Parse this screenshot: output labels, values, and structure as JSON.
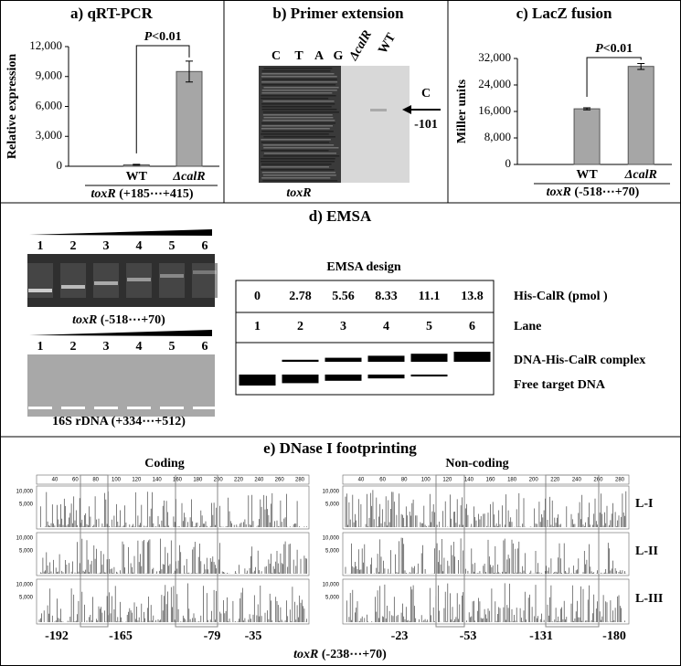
{
  "chart_data": [
    {
      "type": "bar",
      "title": "a) qRT-PCR",
      "y_label": "Relative expression",
      "categories": [
        "WT",
        "ΔcalR"
      ],
      "values": [
        150,
        9500
      ],
      "errors": [
        40,
        1050
      ],
      "color": "#a6a6a6",
      "ylim": [
        0,
        12000
      ],
      "yticks": [
        0,
        {
          "value": 3000,
          "label": "3,000"
        },
        {
          "value": 6000,
          "label": "6,000"
        },
        {
          "value": 9000,
          "label": "9,000"
        },
        {
          "value": 12000,
          "label": "12,000"
        }
      ],
      "annotation": {
        "p": "P",
        "text": "<0.01"
      },
      "x_label": {
        "gene": "toxR",
        "range": "(+185⋯+415)"
      }
    },
    {
      "type": "bar",
      "title": "c) LacZ fusion",
      "y_label": "Miller units",
      "categories": [
        "WT",
        "ΔcalR"
      ],
      "values": [
        16800,
        29600
      ],
      "errors": [
        300,
        900
      ],
      "color": "#a6a6a6",
      "ylim": [
        0,
        32000
      ],
      "yticks": [
        0,
        {
          "value": 8000,
          "label": "8,000"
        },
        {
          "value": 16000,
          "label": "16,000"
        },
        {
          "value": 24000,
          "label": "24,000"
        },
        {
          "value": 32000,
          "label": "32,000"
        }
      ],
      "annotation": {
        "p": "P",
        "text": "<0.01"
      },
      "x_label": {
        "gene": "toxR",
        "range": "(-518⋯+70)"
      }
    }
  ],
  "primer_extension": {
    "title": "b) Primer extension",
    "lanes": [
      "C",
      "T",
      "A",
      "G",
      "ΔcalR",
      "WT"
    ],
    "arrow_label": "C",
    "position": "-101",
    "gene": "toxR"
  },
  "emsa": {
    "title": "d) EMSA",
    "lanes": [
      "1",
      "2",
      "3",
      "4",
      "5",
      "6"
    ],
    "gel1": {
      "gene": "toxR",
      "range": "(-518⋯+70)"
    },
    "gel2": "16S rDNA (+334⋯+512)",
    "design_title": "EMSA design",
    "amounts": [
      "0",
      "2.78",
      "5.56",
      "8.33",
      "11.1",
      "13.8"
    ],
    "row_labels": [
      "His-CalR (pmol )",
      "Lane",
      "DNA-His-CalR complex",
      "Free target DNA"
    ]
  },
  "footprinting": {
    "title": "e) DNase I footprinting",
    "coding": "Coding",
    "noncoding": "Non-coding",
    "axis": [
      "40",
      "60",
      "80",
      "100",
      "120",
      "140",
      "160",
      "180",
      "200",
      "220",
      "240",
      "260",
      "280"
    ],
    "y_tick_labels": [
      "10,000",
      "5,000"
    ],
    "rows": [
      "L-I",
      "L-II",
      "L-III"
    ],
    "coding_positions": [
      "-192",
      "-165",
      "-79",
      "-35"
    ],
    "noncoding_positions": [
      "-23",
      "-53",
      "-131",
      "-180"
    ],
    "gene": "toxR",
    "range": "(-238⋯+70)"
  }
}
